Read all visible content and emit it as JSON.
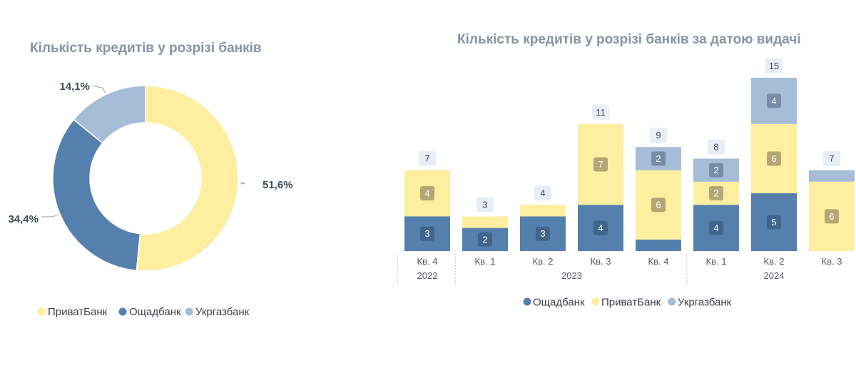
{
  "colors": {
    "oschadbank": "#5580ad",
    "privatbank": "#fdeea0",
    "ukrgazbank": "#a6bdd8",
    "title": "#8593a3",
    "total_bg": "#e8eef6"
  },
  "chart_data": [
    {
      "type": "pie",
      "title": "Кількість кредитів у розрізі банків",
      "donut": true,
      "legend_position": "bottom",
      "legend": [
        "ПриватБанк",
        "Ощадбанк",
        "Укргазбанк"
      ],
      "slices": [
        {
          "name": "ПриватБанк",
          "value": 51.6,
          "label": "51,6%",
          "color_key": "privatbank"
        },
        {
          "name": "Ощадбанк",
          "value": 34.4,
          "label": "34,4%",
          "color_key": "oschadbank"
        },
        {
          "name": "Укргазбанк",
          "value": 14.1,
          "label": "14,1%",
          "color_key": "ukrgazbank"
        }
      ]
    },
    {
      "type": "bar",
      "stacked": true,
      "title": "Кількість кредитів у розрізі банків за датою видачі",
      "legend_position": "bottom",
      "legend": [
        "Ощадбанк",
        "ПриватБанк",
        "Укргазбанк"
      ],
      "categories": [
        "Кв. 4",
        "Кв. 1",
        "Кв. 2",
        "Кв. 3",
        "Кв. 4",
        "Кв. 1",
        "Кв. 2",
        "Кв. 3"
      ],
      "years": [
        {
          "label": "2022",
          "from": 0,
          "to": 0
        },
        {
          "label": "2023",
          "from": 1,
          "to": 4
        },
        {
          "label": "2024",
          "from": 5,
          "to": 7
        }
      ],
      "series": [
        {
          "name": "Ощадбанк",
          "color_key": "oschadbank",
          "values": [
            3,
            2,
            3,
            4,
            1,
            4,
            5,
            0
          ],
          "labels": [
            "3",
            "2",
            "3",
            "4",
            "",
            "4",
            "5",
            ""
          ]
        },
        {
          "name": "ПриватБанк",
          "color_key": "privatbank",
          "values": [
            4,
            1,
            1,
            7,
            6,
            2,
            6,
            6
          ],
          "labels": [
            "4",
            "",
            "",
            "7",
            "6",
            "2",
            "6",
            "6"
          ]
        },
        {
          "name": "Укргазбанк",
          "color_key": "ukrgazbank",
          "values": [
            0,
            0,
            0,
            0,
            2,
            2,
            4,
            1
          ],
          "labels": [
            "",
            "",
            "",
            "",
            "2",
            "2",
            "4",
            ""
          ]
        }
      ],
      "totals": [
        "7",
        "3",
        "4",
        "11",
        "9",
        "8",
        "15",
        "7"
      ]
    }
  ]
}
